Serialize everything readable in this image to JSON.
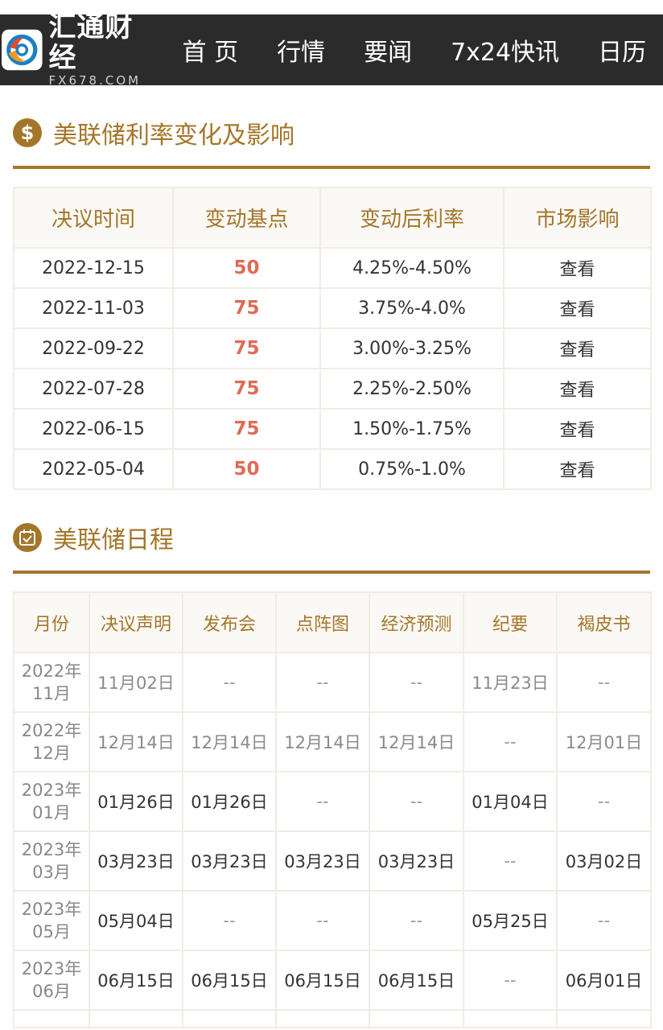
{
  "header": {
    "logo_cn": "汇通财经",
    "logo_en": "FX678.COM",
    "nav": [
      "首 页",
      "行情",
      "要闻",
      "7x24快讯",
      "日历"
    ]
  },
  "rates": {
    "title": "美联储利率变化及影响",
    "icon": "dollar-coin-icon",
    "icon_glyph": "$",
    "columns": [
      "决议时间",
      "变动基点",
      "变动后利率",
      "市场影响"
    ],
    "rows": [
      {
        "date": "2022-12-15",
        "bp": "50",
        "rate": "4.25%-4.50%",
        "impact": "查看"
      },
      {
        "date": "2022-11-03",
        "bp": "75",
        "rate": "3.75%-4.0%",
        "impact": "查看"
      },
      {
        "date": "2022-09-22",
        "bp": "75",
        "rate": "3.00%-3.25%",
        "impact": "查看"
      },
      {
        "date": "2022-07-28",
        "bp": "75",
        "rate": "2.25%-2.50%",
        "impact": "查看"
      },
      {
        "date": "2022-06-15",
        "bp": "75",
        "rate": "1.50%-1.75%",
        "impact": "查看"
      },
      {
        "date": "2022-05-04",
        "bp": "50",
        "rate": "0.75%-1.0%",
        "impact": "查看"
      }
    ]
  },
  "schedule": {
    "title": "美联储日程",
    "icon": "calendar-check-icon",
    "columns": [
      "月份",
      "决议声明",
      "发布会",
      "点阵图",
      "经济预测",
      "纪要",
      "褐皮书"
    ],
    "rows": [
      {
        "month_year": "2022年",
        "month": "11月",
        "past": true,
        "cells": [
          "11月02日",
          "--",
          "--",
          "--",
          "11月23日",
          "--"
        ]
      },
      {
        "month_year": "2022年",
        "month": "12月",
        "past": true,
        "cells": [
          "12月14日",
          "12月14日",
          "12月14日",
          "12月14日",
          "--",
          "12月01日"
        ]
      },
      {
        "month_year": "2023年",
        "month": "01月",
        "past": false,
        "cells": [
          "01月26日",
          "01月26日",
          "--",
          "--",
          "01月04日",
          "--"
        ]
      },
      {
        "month_year": "2023年",
        "month": "03月",
        "past": false,
        "cells": [
          "03月23日",
          "03月23日",
          "03月23日",
          "03月23日",
          "--",
          "03月02日"
        ]
      },
      {
        "month_year": "2023年",
        "month": "05月",
        "past": false,
        "cells": [
          "05月04日",
          "--",
          "--",
          "--",
          "05月25日",
          "--"
        ]
      },
      {
        "month_year": "2023年",
        "month": "06月",
        "past": false,
        "cells": [
          "06月15日",
          "06月15日",
          "06月15日",
          "06月15日",
          "--",
          "06月01日"
        ]
      }
    ]
  },
  "colors": {
    "accent": "#a4762a",
    "navbar_bg": "#2b2b2b",
    "bp_red": "#e06a55"
  }
}
